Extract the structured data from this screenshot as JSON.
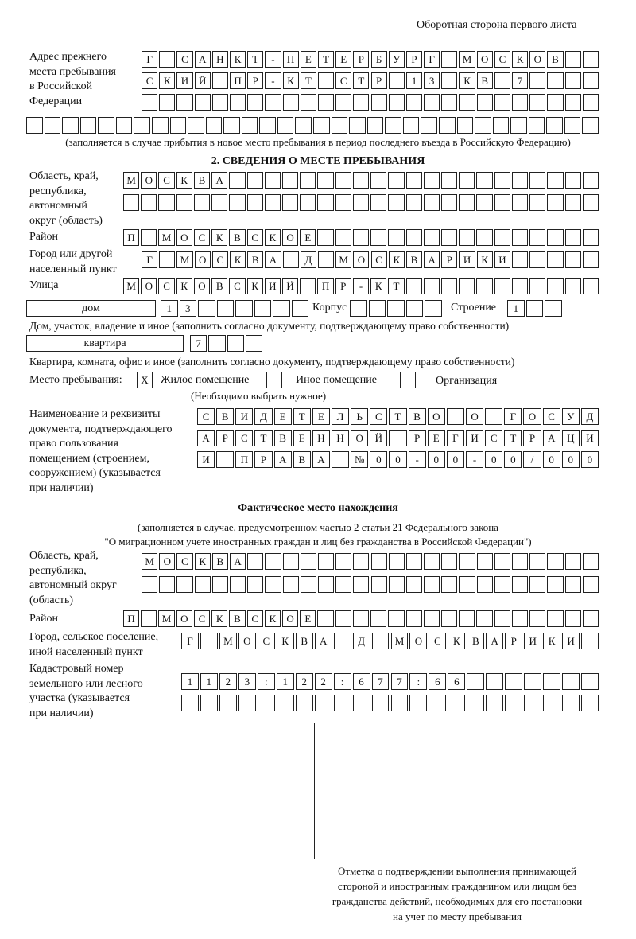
{
  "header": {
    "side_note": "Оборотная сторона первого листа"
  },
  "prev_address": {
    "label": "Адрес прежнего\nместа пребывания\nв Российской\nФедерации",
    "rows": [
      [
        "Г",
        " ",
        "С",
        "А",
        "Н",
        "К",
        "Т",
        "-",
        "П",
        "Е",
        "Т",
        "Е",
        "Р",
        "Б",
        "У",
        "Р",
        "Г",
        " ",
        "М",
        "О",
        "С",
        "К",
        "О",
        "В"
      ],
      [
        "С",
        "К",
        "И",
        "Й",
        " ",
        "П",
        "Р",
        "-",
        "К",
        "Т",
        " ",
        "С",
        "Т",
        "Р",
        " ",
        "1",
        "3",
        " ",
        "К",
        "В",
        " ",
        "7"
      ],
      [],
      []
    ],
    "note": "(заполняется в случае прибытия в новое место пребывания в период последнего въезда в Российскую Федерацию)"
  },
  "section2": {
    "title": "2. СВЕДЕНИЯ О МЕСТЕ ПРЕБЫВАНИЯ",
    "region_label": "Область, край,\nреспублика,\nавтономный\nокруг (область)",
    "region_rows": [
      [
        "М",
        "О",
        "С",
        "К",
        "В",
        "А"
      ],
      []
    ],
    "district_label": "Район",
    "district": [
      "П",
      " ",
      "М",
      "О",
      "С",
      "К",
      "В",
      "С",
      "К",
      "О",
      "Е"
    ],
    "city_label": "Город или другой\nнаселенный пункт",
    "city": [
      "Г",
      " ",
      "М",
      "О",
      "С",
      "К",
      "В",
      "А",
      " ",
      "Д",
      " ",
      "М",
      "О",
      "С",
      "К",
      "В",
      "А",
      "Р",
      "И",
      "К",
      "И"
    ],
    "street_label": "Улица",
    "street": [
      "М",
      "О",
      "С",
      "К",
      "О",
      "В",
      "С",
      "К",
      "И",
      "Й",
      " ",
      "П",
      "Р",
      "-",
      "К",
      "Т"
    ],
    "house_type": "дом",
    "house": [
      "1",
      "3"
    ],
    "korpus_label": "Корпус",
    "korpus": [],
    "building_label": "Строение",
    "building": [
      "1"
    ],
    "house_note": "Дом, участок, владение и иное (заполнить согласно документу, подтверждающему право собственности)",
    "flat_type": "квартира",
    "flat": [
      "7"
    ],
    "flat_note": "Квартира, комната, офис и иное (заполнить согласно документу, подтверждающему право собственности)",
    "stay_label": "Место пребывания:",
    "stay_options": [
      {
        "mark": "X",
        "label": "Жилое помещение",
        "checked": true
      },
      {
        "mark": "",
        "label": "Иное помещение",
        "checked": false
      },
      {
        "mark": "",
        "label": "Организация",
        "checked": false
      }
    ],
    "stay_note": "(Необходимо выбрать нужное)",
    "doc_label": "Наименование и реквизиты\nдокумента, подтверждающего\nправо пользования\nпомещением (строением,\nсооружением) (указывается\nпри наличии)",
    "doc_rows": [
      [
        "С",
        "В",
        "И",
        "Д",
        "Е",
        "Т",
        "Е",
        "Л",
        "Ь",
        "С",
        "Т",
        "В",
        "О",
        " ",
        "О",
        " ",
        "Г",
        "О",
        "С",
        "У",
        "Д"
      ],
      [
        "А",
        "Р",
        "С",
        "Т",
        "В",
        "Е",
        "Н",
        "Н",
        "О",
        "Й",
        " ",
        "Р",
        "Е",
        "Г",
        "И",
        "С",
        "Т",
        "Р",
        "А",
        "Ц",
        "И"
      ],
      [
        "И",
        " ",
        "П",
        "Р",
        "А",
        "В",
        "А",
        " ",
        "№",
        "0",
        "0",
        "-",
        "0",
        "0",
        "-",
        "0",
        "0",
        "/",
        "0",
        "0",
        "0"
      ]
    ]
  },
  "actual": {
    "title": "Фактическое место нахождения",
    "note1": "(заполняется в случае, предусмотренном частью 2 статьи 21 Федерального закона",
    "note2": "\"О миграционном учете иностранных граждан и лиц без гражданства в Российской Федерации\")",
    "region_label": "Область, край,\nреспублика,\nавтономный округ\n(область)",
    "region_rows": [
      [
        "М",
        "О",
        "С",
        "К",
        "В",
        "А"
      ],
      []
    ],
    "district_label": "Район",
    "district": [
      "П",
      " ",
      "М",
      "О",
      "С",
      "К",
      "В",
      "С",
      "К",
      "О",
      "Е"
    ],
    "city_label": "Город, сельское поселение,\nиной населенный пункт",
    "city": [
      "Г",
      " ",
      "М",
      "О",
      "С",
      "К",
      "В",
      "А",
      " ",
      "Д",
      " ",
      "М",
      "О",
      "С",
      "К",
      "В",
      "А",
      "Р",
      "И",
      "К",
      "И"
    ],
    "cadastre_label": "Кадастровый номер\nземельного или лесного\nучастка (указывается\nпри наличии)",
    "cadastre_rows": [
      [
        "1",
        "1",
        "2",
        "3",
        ":",
        "1",
        "2",
        "2",
        ":",
        "6",
        "7",
        "7",
        ":",
        "6",
        "6"
      ],
      []
    ]
  },
  "stamp": {
    "caption": "Отметка о подтверждении выполнения принимающей\nстороной и иностранным гражданином или лицом без\nгражданства действий, необходимых для его постановки\nна учет по месту пребывания"
  }
}
